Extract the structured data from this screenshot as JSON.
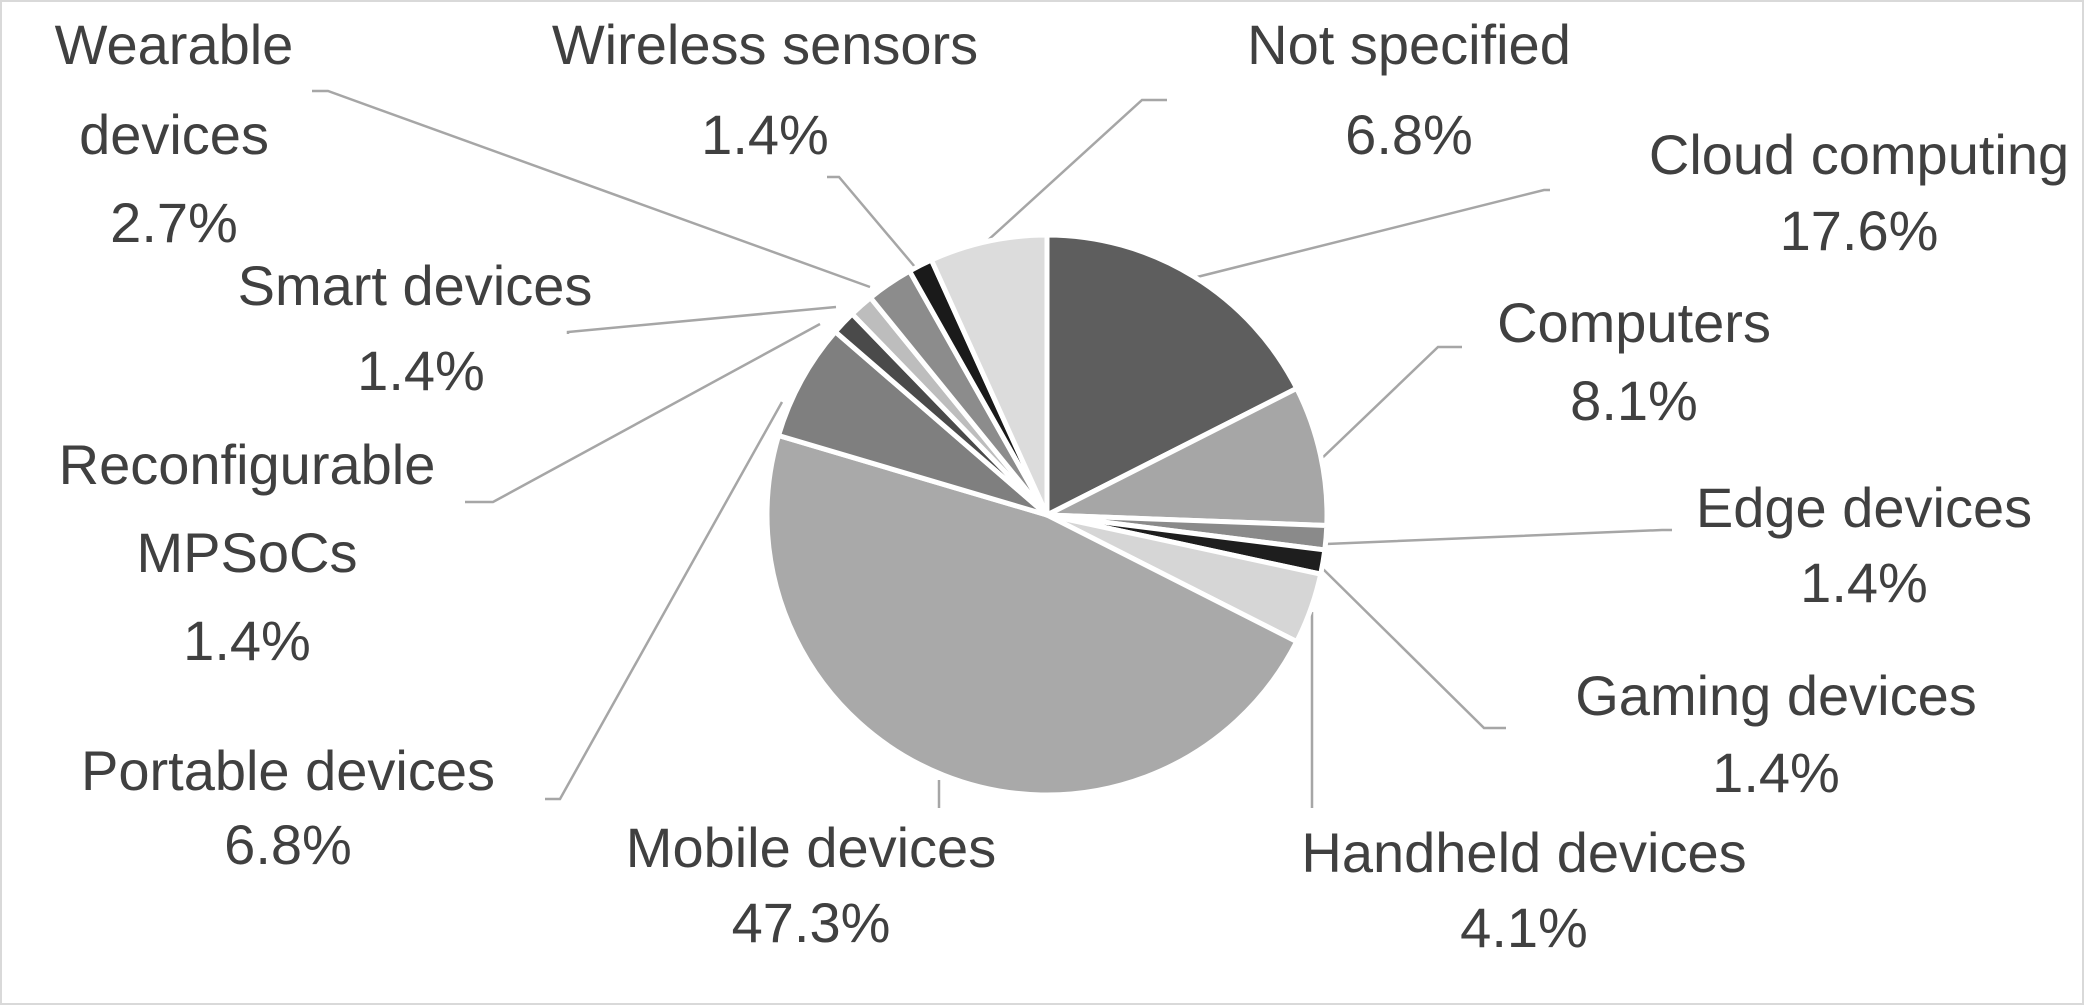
{
  "chart_data": {
    "type": "pie",
    "title": "",
    "legend": "none",
    "slices": [
      {
        "label": "Cloud computing",
        "value": 17.6,
        "value_label": "17.6%",
        "color": "#5e5e5e"
      },
      {
        "label": "Computers",
        "value": 8.1,
        "value_label": "8.1%",
        "color": "#a6a6a6"
      },
      {
        "label": "Edge devices",
        "value": 1.4,
        "value_label": "1.4%",
        "color": "#8a8a8a"
      },
      {
        "label": "Gaming devices",
        "value": 1.4,
        "value_label": "1.4%",
        "color": "#1e1e1e"
      },
      {
        "label": "Handheld devices",
        "value": 4.1,
        "value_label": "4.1%",
        "color": "#d6d6d6"
      },
      {
        "label": "Mobile devices",
        "value": 47.3,
        "value_label": "47.3%",
        "color": "#a9a9a9"
      },
      {
        "label": "Portable devices",
        "value": 6.8,
        "value_label": "6.8%",
        "color": "#7f7f7f"
      },
      {
        "label": "Reconfigurable MPSoCs",
        "value": 1.4,
        "value_label": "1.4%",
        "color": "#4a4a4a"
      },
      {
        "label": "Smart devices",
        "value": 1.4,
        "value_label": "1.4%",
        "color": "#bdbdbd"
      },
      {
        "label": "Wearable devices",
        "value": 2.7,
        "value_label": "2.7%",
        "color": "#8c8c8c"
      },
      {
        "label": "Wireless sensors",
        "value": 1.4,
        "value_label": "1.4%",
        "color": "#1a1a1a"
      },
      {
        "label": "Not specified",
        "value": 6.8,
        "value_label": "6.8%",
        "color": "#dcdcdc"
      }
    ]
  }
}
